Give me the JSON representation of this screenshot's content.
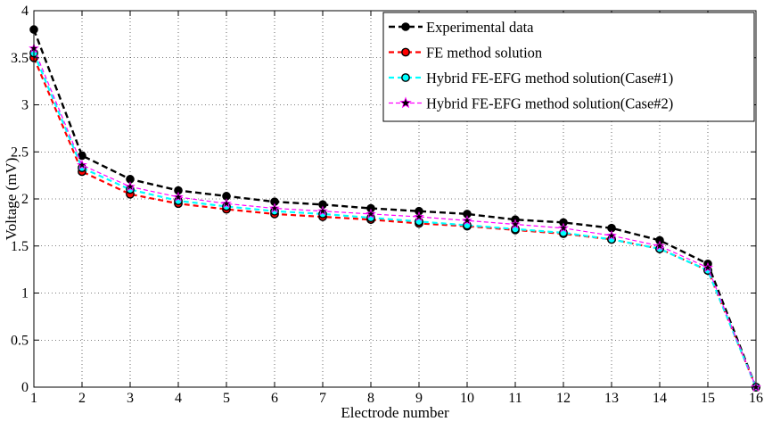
{
  "chart_data": {
    "type": "line",
    "title": "",
    "xlabel": "Electrode number",
    "ylabel": "Voltage (mV)",
    "xlim": [
      1,
      16
    ],
    "ylim": [
      0,
      4
    ],
    "xticks": [
      "1",
      "2",
      "3",
      "4",
      "5",
      "6",
      "7",
      "8",
      "9",
      "10",
      "11",
      "12",
      "13",
      "14",
      "15",
      "16"
    ],
    "yticks": [
      "0",
      "0.5",
      "1",
      "1.5",
      "2",
      "2.5",
      "3",
      "3.5",
      "4"
    ],
    "grid": true,
    "legend_position": "top-right",
    "x": [
      1,
      2,
      3,
      4,
      5,
      6,
      7,
      8,
      9,
      10,
      11,
      12,
      13,
      14,
      15,
      16
    ],
    "series": [
      {
        "name": "Experimental data",
        "color": "#000000",
        "line": "dashed",
        "marker": "filled-circle",
        "marker_face": "#000000",
        "values": [
          3.8,
          2.46,
          2.21,
          2.09,
          2.03,
          1.97,
          1.94,
          1.9,
          1.87,
          1.84,
          1.78,
          1.75,
          1.69,
          1.56,
          1.31,
          0.0
        ]
      },
      {
        "name": "FE method solution",
        "color": "#ff0000",
        "line": "dashed",
        "marker": "circle",
        "marker_face": "#ff0000",
        "values": [
          3.5,
          2.29,
          2.05,
          1.95,
          1.89,
          1.84,
          1.81,
          1.78,
          1.74,
          1.71,
          1.67,
          1.63,
          1.57,
          1.47,
          1.24,
          0.0
        ]
      },
      {
        "name": "Hybrid FE-EFG method solution(Case#1)",
        "color": "#00ffff",
        "line": "dashed",
        "marker": "circle",
        "marker_face": "#00ffff",
        "values": [
          3.55,
          2.33,
          2.1,
          1.98,
          1.92,
          1.87,
          1.84,
          1.8,
          1.76,
          1.72,
          1.68,
          1.64,
          1.57,
          1.47,
          1.24,
          0.0
        ]
      },
      {
        "name": "Hybrid FE-EFG method solution(Case#2)",
        "color": "#ff00ff",
        "line": "dashed",
        "marker": "star",
        "marker_face": "#000000",
        "values": [
          3.6,
          2.36,
          2.13,
          2.02,
          1.95,
          1.9,
          1.87,
          1.84,
          1.81,
          1.77,
          1.73,
          1.69,
          1.61,
          1.5,
          1.27,
          0.0
        ]
      }
    ]
  }
}
